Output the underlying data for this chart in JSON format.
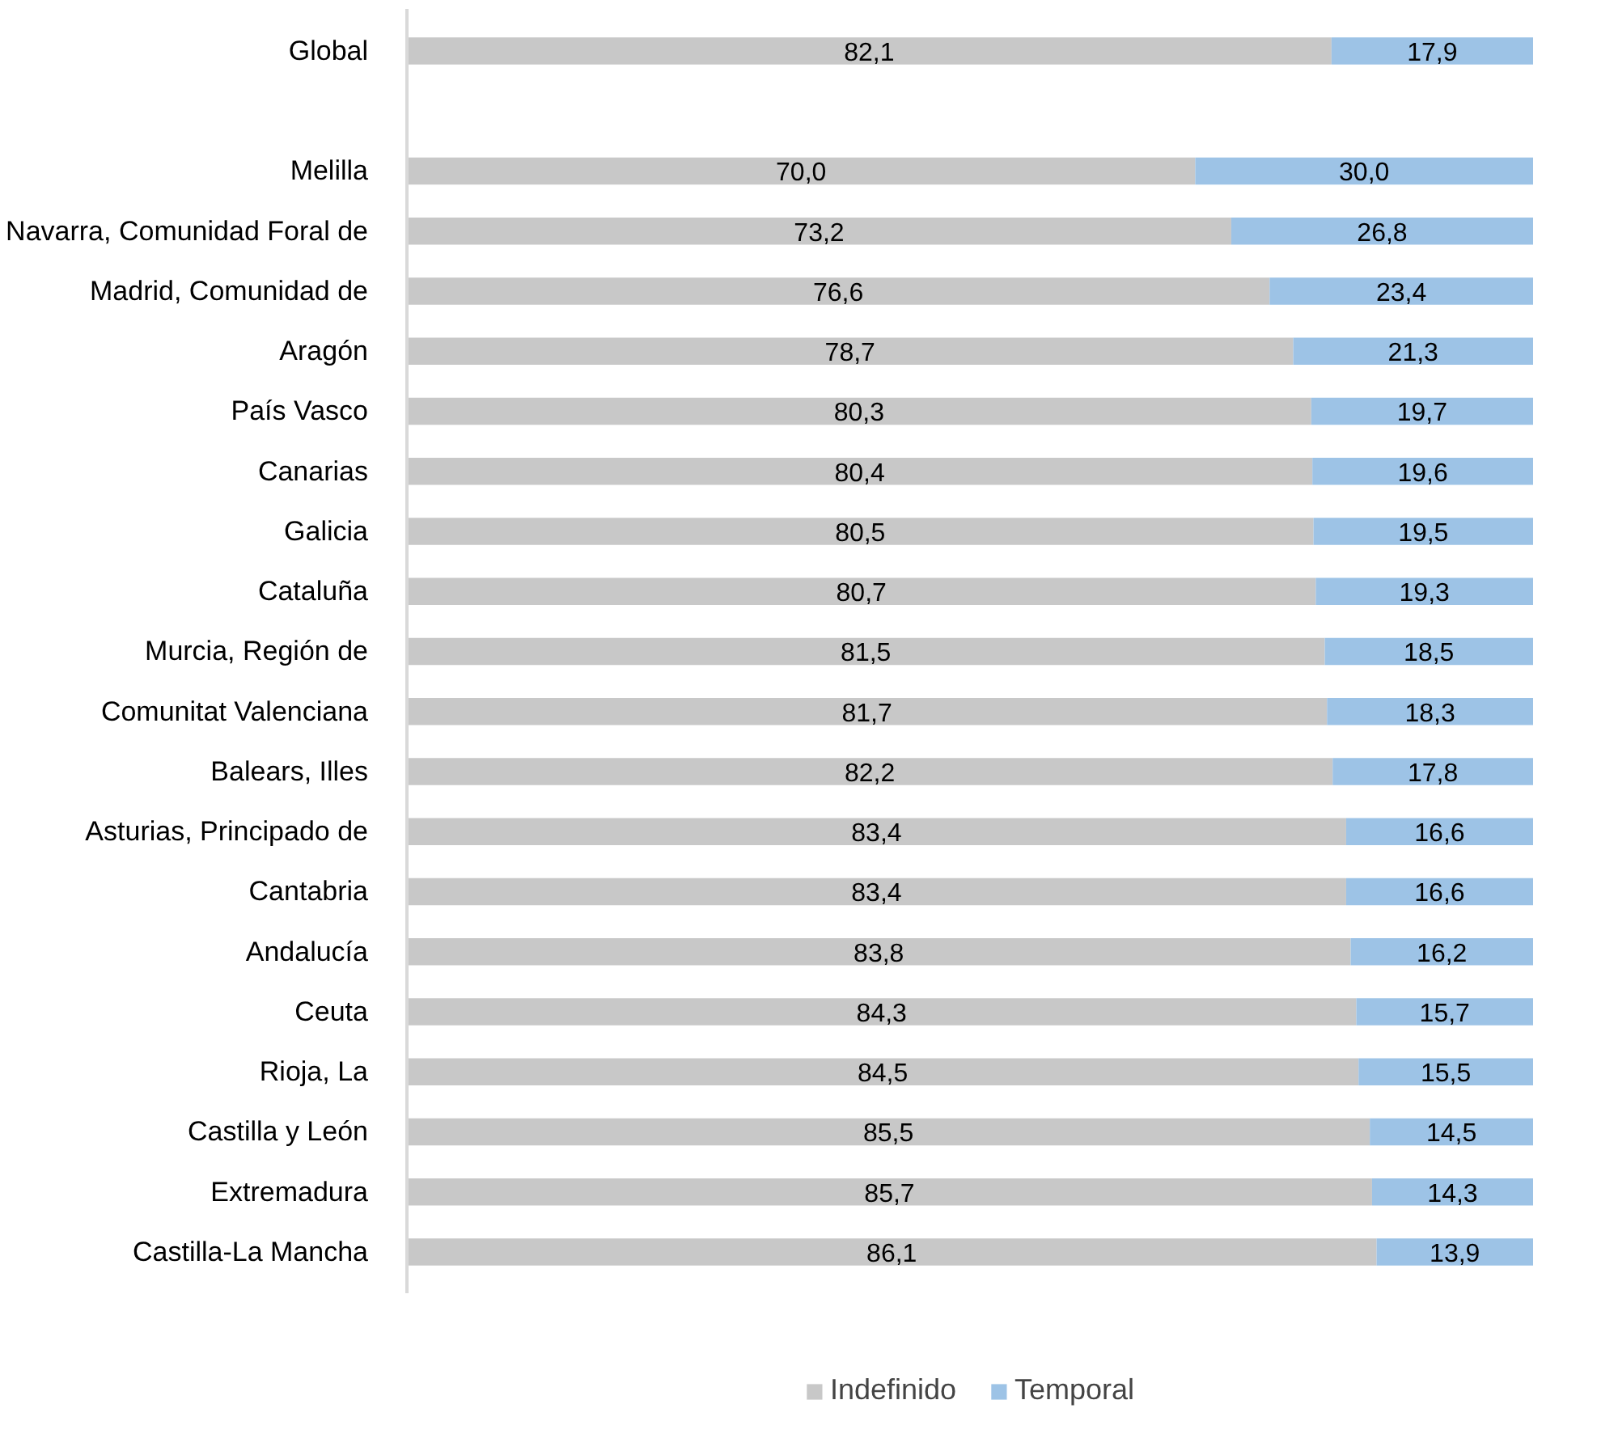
{
  "chart_data": {
    "type": "bar",
    "orientation": "horizontal",
    "stacked": true,
    "legend": "bottom",
    "categories": [
      "Global",
      null,
      "Melilla",
      "Navarra, Comunidad Foral de",
      "Madrid, Comunidad de",
      "Aragón",
      "País Vasco",
      "Canarias",
      "Galicia",
      "Cataluña",
      "Murcia, Región de",
      "Comunitat Valenciana",
      "Balears, Illes",
      "Asturias, Principado de",
      "Cantabria",
      "Andalucía",
      "Ceuta",
      "Rioja, La",
      "Castilla y León",
      "Extremadura",
      "Castilla-La Mancha"
    ],
    "series": [
      {
        "name": "Indefinido",
        "color": "#c8c8c8",
        "values": [
          82.1,
          null,
          70.0,
          73.2,
          76.6,
          78.7,
          80.3,
          80.4,
          80.5,
          80.7,
          81.5,
          81.7,
          82.2,
          83.4,
          83.4,
          83.8,
          84.3,
          84.5,
          85.5,
          85.7,
          86.1
        ],
        "value_labels": [
          "82,1",
          null,
          "70,0",
          "73,2",
          "76,6",
          "78,7",
          "80,3",
          "80,4",
          "80,5",
          "80,7",
          "81,5",
          "81,7",
          "82,2",
          "83,4",
          "83,4",
          "83,8",
          "84,3",
          "84,5",
          "85,5",
          "85,7",
          "86,1"
        ]
      },
      {
        "name": "Temporal",
        "color": "#9dc3e6",
        "values": [
          17.9,
          null,
          30.0,
          26.8,
          23.4,
          21.3,
          19.7,
          19.6,
          19.5,
          19.3,
          18.5,
          18.3,
          17.8,
          16.6,
          16.6,
          16.2,
          15.7,
          15.5,
          14.5,
          14.3,
          13.9
        ],
        "value_labels": [
          "17,9",
          null,
          "30,0",
          "26,8",
          "23,4",
          "21,3",
          "19,7",
          "19,6",
          "19,5",
          "19,3",
          "18,5",
          "18,3",
          "17,8",
          "16,6",
          "16,6",
          "16,2",
          "15,7",
          "15,5",
          "14,5",
          "14,3",
          "13,9"
        ]
      }
    ]
  }
}
